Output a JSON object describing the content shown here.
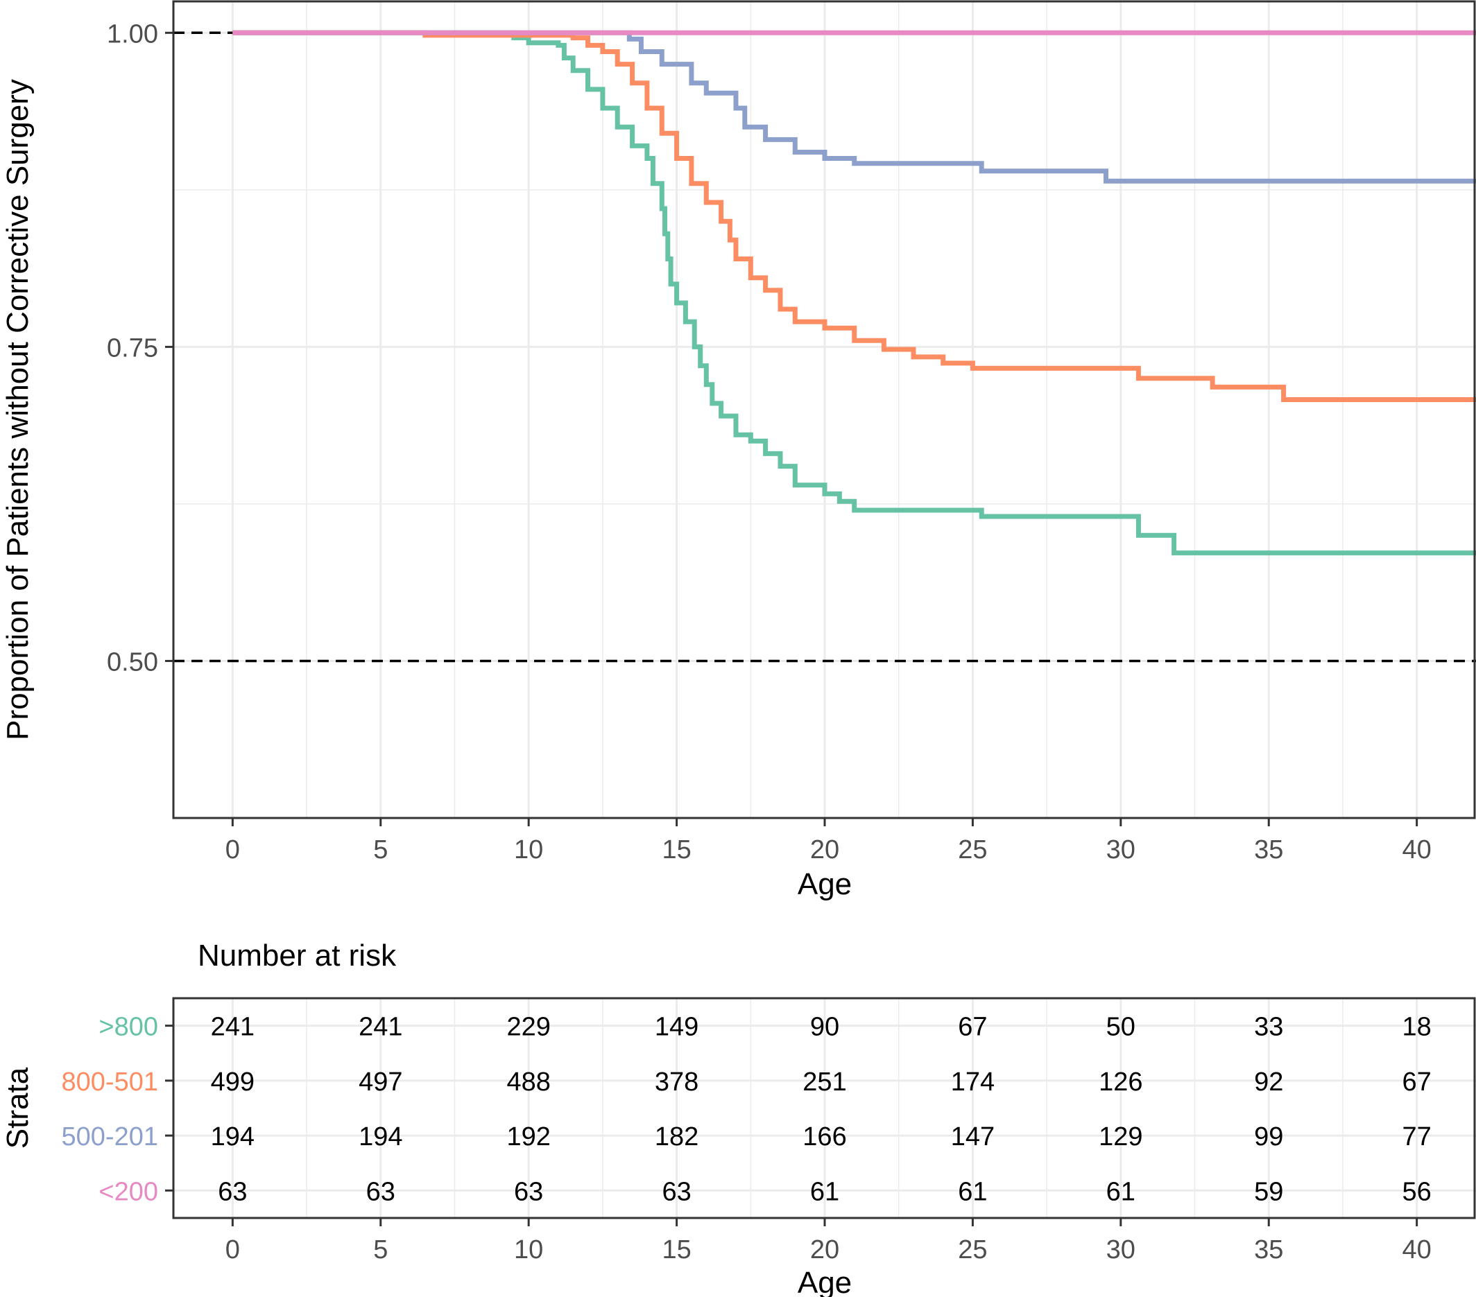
{
  "chart_data": [
    {
      "type": "line",
      "subtype": "kaplan-meier step curves",
      "xlabel": "Age",
      "ylabel": "Proportion of Patients without Corrective Surgery",
      "xlim": [
        -2,
        42
      ],
      "ylim": [
        0.375,
        1.025
      ],
      "xticks": [
        0,
        5,
        10,
        15,
        20,
        25,
        30,
        35,
        40
      ],
      "yticks": [
        0.5,
        0.75,
        1.0
      ],
      "ytick_labels": [
        "0.50",
        "0.75",
        "1.00"
      ],
      "grid": true,
      "reference_lines": [
        1.0,
        0.5
      ],
      "series": [
        {
          "label": ">800",
          "color": "#66c2a5",
          "points": [
            [
              0,
              1.0
            ],
            [
              9.2,
              1.0
            ],
            [
              9.5,
              0.996
            ],
            [
              10.0,
              0.992
            ],
            [
              11.0,
              0.99
            ],
            [
              11.2,
              0.98
            ],
            [
              11.5,
              0.97
            ],
            [
              12.0,
              0.955
            ],
            [
              12.5,
              0.94
            ],
            [
              13.0,
              0.925
            ],
            [
              13.5,
              0.91
            ],
            [
              14.0,
              0.9
            ],
            [
              14.2,
              0.88
            ],
            [
              14.5,
              0.86
            ],
            [
              14.6,
              0.84
            ],
            [
              14.7,
              0.82
            ],
            [
              14.8,
              0.8
            ],
            [
              15.0,
              0.785
            ],
            [
              15.3,
              0.77
            ],
            [
              15.6,
              0.75
            ],
            [
              15.8,
              0.735
            ],
            [
              16.0,
              0.72
            ],
            [
              16.2,
              0.705
            ],
            [
              16.5,
              0.695
            ],
            [
              17.0,
              0.68
            ],
            [
              17.5,
              0.675
            ],
            [
              18.0,
              0.665
            ],
            [
              18.5,
              0.655
            ],
            [
              19.0,
              0.64
            ],
            [
              20.0,
              0.633
            ],
            [
              20.5,
              0.627
            ],
            [
              21.0,
              0.62
            ],
            [
              25.3,
              0.615
            ],
            [
              30.6,
              0.6
            ],
            [
              31.8,
              0.586
            ],
            [
              42,
              0.586
            ]
          ]
        },
        {
          "label": "800-501",
          "color": "#fc8d62",
          "points": [
            [
              0,
              1.0
            ],
            [
              6.5,
              0.998
            ],
            [
              11.5,
              0.996
            ],
            [
              12.0,
              0.99
            ],
            [
              12.5,
              0.985
            ],
            [
              13.0,
              0.975
            ],
            [
              13.5,
              0.96
            ],
            [
              14.0,
              0.94
            ],
            [
              14.5,
              0.92
            ],
            [
              15.0,
              0.9
            ],
            [
              15.5,
              0.88
            ],
            [
              16.0,
              0.865
            ],
            [
              16.5,
              0.85
            ],
            [
              16.8,
              0.835
            ],
            [
              17.0,
              0.82
            ],
            [
              17.5,
              0.805
            ],
            [
              18.0,
              0.795
            ],
            [
              18.5,
              0.78
            ],
            [
              19.0,
              0.77
            ],
            [
              20.0,
              0.765
            ],
            [
              21.0,
              0.755
            ],
            [
              22.0,
              0.748
            ],
            [
              23.0,
              0.742
            ],
            [
              24.0,
              0.737
            ],
            [
              25.0,
              0.733
            ],
            [
              30.6,
              0.725
            ],
            [
              33.1,
              0.718
            ],
            [
              35.5,
              0.708
            ],
            [
              42,
              0.708
            ]
          ]
        },
        {
          "label": "500-201",
          "color": "#8da0cb",
          "points": [
            [
              0,
              1.0
            ],
            [
              13.4,
              0.995
            ],
            [
              13.8,
              0.985
            ],
            [
              14.5,
              0.975
            ],
            [
              15.5,
              0.96
            ],
            [
              16.0,
              0.952
            ],
            [
              17.0,
              0.94
            ],
            [
              17.3,
              0.925
            ],
            [
              18.0,
              0.915
            ],
            [
              19.0,
              0.905
            ],
            [
              20.0,
              0.9
            ],
            [
              21.0,
              0.896
            ],
            [
              25.3,
              0.89
            ],
            [
              29.5,
              0.882
            ],
            [
              42,
              0.882
            ]
          ]
        },
        {
          "label": "<200",
          "color": "#e78ac3",
          "points": [
            [
              0,
              1.0
            ],
            [
              42,
              1.0
            ]
          ]
        }
      ]
    },
    {
      "type": "table",
      "title": "Number at risk",
      "xlabel": "Age",
      "ylabel": "Strata",
      "xticks": [
        0,
        5,
        10,
        15,
        20,
        25,
        30,
        35,
        40
      ],
      "rows": [
        {
          "label": ">800",
          "color": "#66c2a5",
          "values": [
            "241",
            "241",
            "229",
            "149",
            "90",
            "67",
            "50",
            "33",
            "18"
          ]
        },
        {
          "label": "800-501",
          "color": "#fc8d62",
          "values": [
            "499",
            "497",
            "488",
            "378",
            "251",
            "174",
            "126",
            "92",
            "67"
          ]
        },
        {
          "label": "500-201",
          "color": "#8da0cb",
          "values": [
            "194",
            "194",
            "192",
            "182",
            "166",
            "147",
            "129",
            "99",
            "77"
          ]
        },
        {
          "label": "<200",
          "color": "#e78ac3",
          "values": [
            "63",
            "63",
            "63",
            "63",
            "61",
            "61",
            "61",
            "59",
            "56"
          ]
        }
      ]
    }
  ]
}
